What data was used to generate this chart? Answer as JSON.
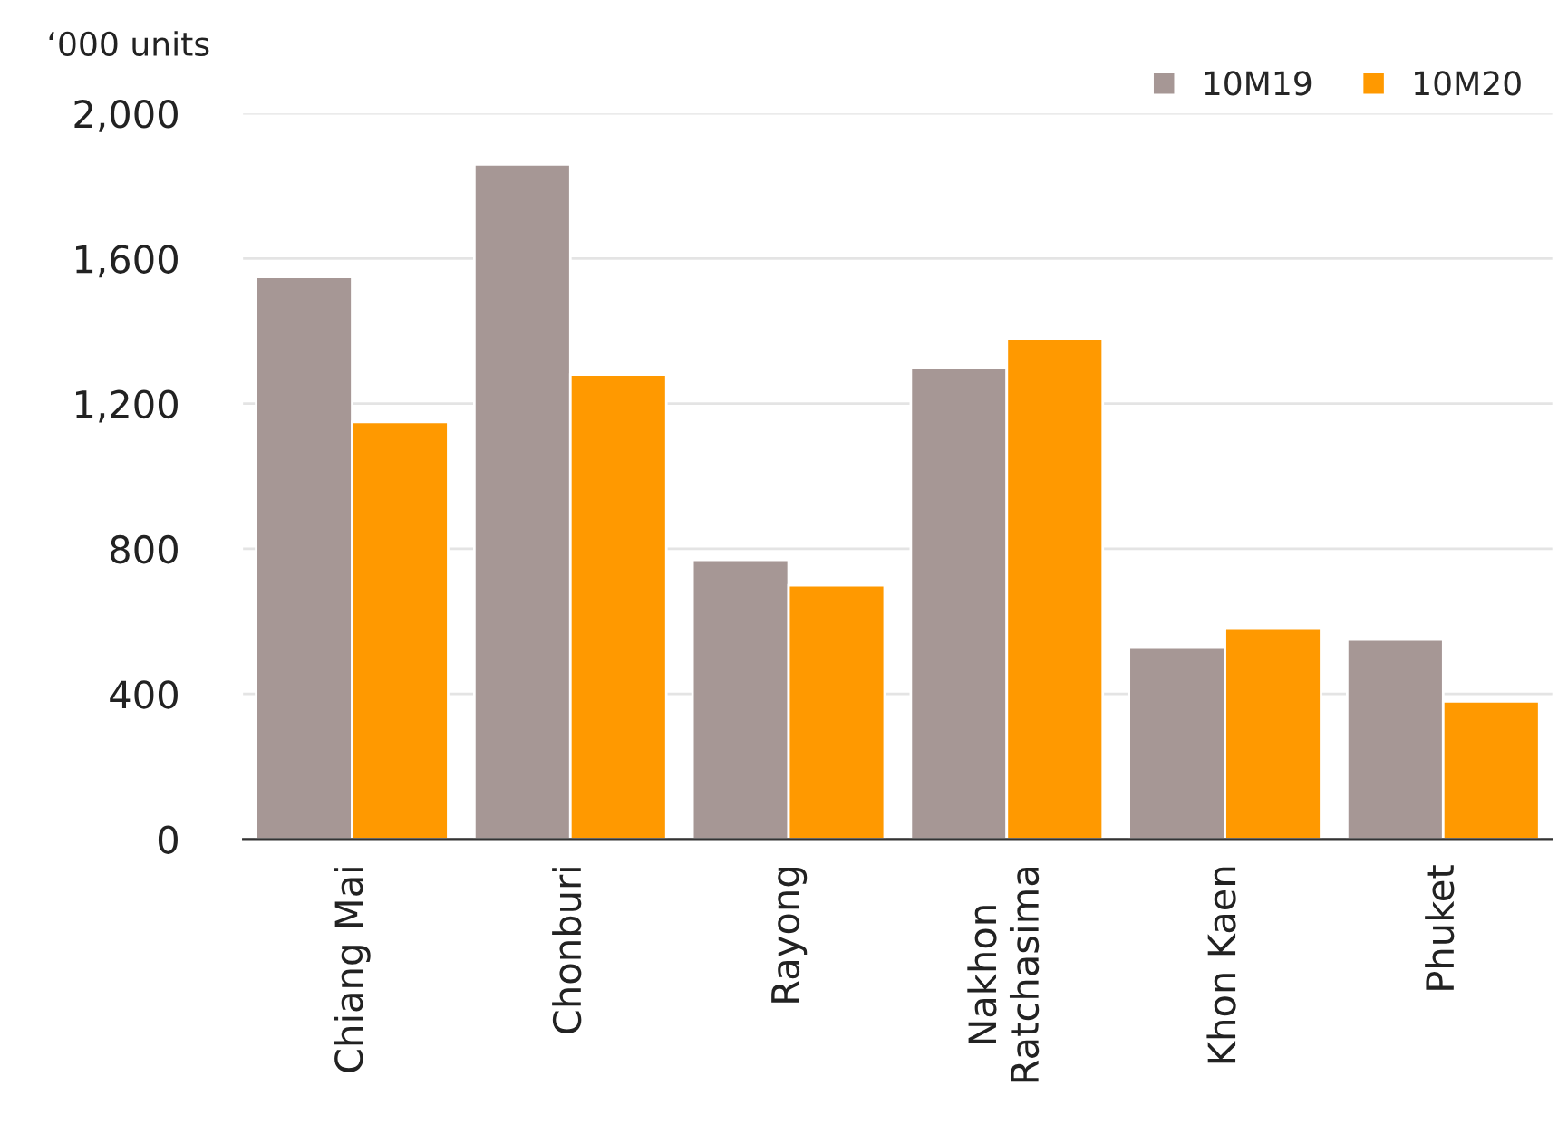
{
  "chart_data": {
    "type": "bar",
    "ylabel": "‘000 units",
    "categories": [
      "Chiang Mai",
      "Chonburi",
      "Rayong",
      "Nakhon\nRatchasima",
      "Khon Kaen",
      "Phuket"
    ],
    "series": [
      {
        "name": "10M19",
        "color": "#a69795",
        "values": [
          1550,
          1860,
          770,
          1300,
          530,
          550
        ]
      },
      {
        "name": "10M20",
        "color": "#ff9900",
        "values": [
          1150,
          1280,
          700,
          1380,
          580,
          380
        ]
      }
    ],
    "ylim": [
      0,
      2000
    ],
    "yticks": [
      {
        "value": 0,
        "label": "0"
      },
      {
        "value": 400,
        "label": "400"
      },
      {
        "value": 800,
        "label": "800"
      },
      {
        "value": 1200,
        "label": "1,200"
      },
      {
        "value": 1600,
        "label": "1,600"
      },
      {
        "value": 2000,
        "label": "2,000"
      }
    ],
    "grid": "y",
    "legend": "top right"
  }
}
